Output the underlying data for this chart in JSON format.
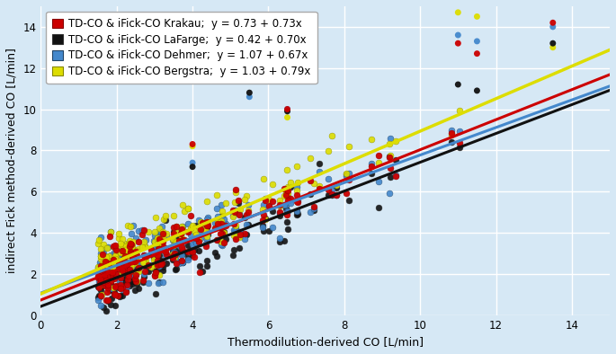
{
  "background_color": "#d6e8f5",
  "plot_bg_color": "#d6e8f5",
  "xlabel": "Thermodilution-derived CO [L/min]",
  "ylabel": "indirect Fick method-derived CO [L/min]",
  "xlim": [
    0,
    15
  ],
  "ylim": [
    0,
    15
  ],
  "xticks": [
    0,
    2,
    4,
    6,
    8,
    10,
    12,
    14
  ],
  "yticks": [
    0,
    2,
    4,
    6,
    8,
    10,
    12,
    14
  ],
  "lines": [
    {
      "label": "TD-CO & iFick-CO Krakau;  y = 0.73 + 0.73x",
      "intercept": 0.73,
      "slope": 0.73,
      "color": "#cc0000",
      "lw": 2.2
    },
    {
      "label": "TD-CO & iFick-CO LaFarge;  y = 0.42 + 0.70x",
      "intercept": 0.42,
      "slope": 0.7,
      "color": "#111111",
      "lw": 2.2
    },
    {
      "label": "TD-CO & iFick-CO Dehmer;  y = 1.07 + 0.67x",
      "intercept": 1.07,
      "slope": 0.67,
      "color": "#4488cc",
      "lw": 2.2
    },
    {
      "label": "TD-CO & iFick-CO Bergstra;  y = 1.03 + 0.79x",
      "intercept": 1.03,
      "slope": 0.79,
      "color": "#dddd00",
      "lw": 2.5
    }
  ],
  "scatter_colors": [
    "#cc0000",
    "#111111",
    "#4488cc",
    "#dddd00"
  ],
  "marker_size": 5,
  "grid_color": "#ffffff",
  "legend_fontsize": 8.5,
  "axis_fontsize": 9,
  "tick_fontsize": 8.5
}
